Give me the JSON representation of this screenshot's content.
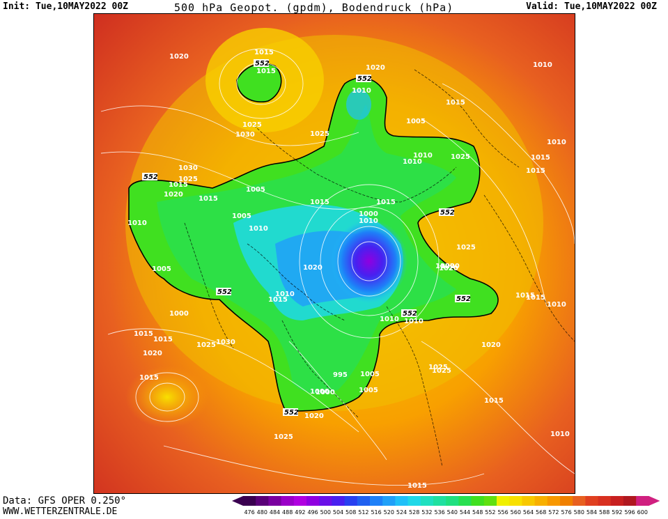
{
  "header": {
    "init": "Init: Tue,10MAY2022 00Z",
    "title": "500 hPa Geopot. (gpdm), Bodendruck (hPa)",
    "valid": "Valid: Tue,10MAY2022 00Z"
  },
  "footer": {
    "data_source": "Data: GFS OPER 0.250°",
    "website": "WWW.WETTERZENTRALE.DE"
  },
  "legend": {
    "values": [
      "476",
      "480",
      "484",
      "488",
      "492",
      "496",
      "500",
      "504",
      "508",
      "512",
      "516",
      "520",
      "524",
      "528",
      "532",
      "536",
      "540",
      "544",
      "548",
      "552",
      "556",
      "560",
      "564",
      "568",
      "572",
      "576",
      "580",
      "584",
      "588",
      "592",
      "596",
      "600"
    ],
    "colors": [
      "#3a0050",
      "#5a0078",
      "#7a00a0",
      "#9a00c8",
      "#b000e0",
      "#9000e0",
      "#6a10e8",
      "#4820f0",
      "#2840f0",
      "#2060f0",
      "#1e80f8",
      "#20a0f8",
      "#20c0f8",
      "#20d8e8",
      "#20e0c0",
      "#20e0a0",
      "#20e080",
      "#28e050",
      "#40e020",
      "#60e010",
      "#f0f000",
      "#f8e000",
      "#f8c800",
      "#f8b000",
      "#f89800",
      "#f08000",
      "#e86020",
      "#e04020",
      "#d83020",
      "#c82020",
      "#b01820",
      "#d02080"
    ]
  },
  "map": {
    "geopotential_label": "552",
    "pressure_labels": [
      {
        "text": "1020"
      },
      {
        "text": "1015"
      },
      {
        "text": "1015"
      },
      {
        "text": "1025"
      },
      {
        "text": "1030"
      },
      {
        "text": "1020"
      },
      {
        "text": "1010"
      },
      {
        "text": "1015"
      },
      {
        "text": "1005"
      },
      {
        "text": "1010"
      },
      {
        "text": "1015"
      },
      {
        "text": "1025"
      },
      {
        "text": "1010"
      },
      {
        "text": "1015"
      },
      {
        "text": "1015"
      },
      {
        "text": "1030"
      },
      {
        "text": "1025"
      },
      {
        "text": "1020"
      },
      {
        "text": "1010"
      },
      {
        "text": "1015"
      },
      {
        "text": "1005"
      },
      {
        "text": "1010"
      },
      {
        "text": "1015"
      },
      {
        "text": "1000"
      },
      {
        "text": "1005"
      },
      {
        "text": "1025"
      },
      {
        "text": "1020"
      },
      {
        "text": "1010"
      },
      {
        "text": "1005"
      },
      {
        "text": "1000"
      },
      {
        "text": "1010"
      },
      {
        "text": "1020"
      },
      {
        "text": "1015"
      },
      {
        "text": "1010"
      },
      {
        "text": "1015"
      },
      {
        "text": "1005"
      },
      {
        "text": "1010"
      },
      {
        "text": "1000"
      },
      {
        "text": "1015"
      },
      {
        "text": "1020"
      },
      {
        "text": "1015"
      },
      {
        "text": "1030"
      },
      {
        "text": "1025"
      },
      {
        "text": "1020"
      },
      {
        "text": "1015"
      },
      {
        "text": "1020"
      },
      {
        "text": "1025"
      },
      {
        "text": "1015"
      },
      {
        "text": "1010"
      },
      {
        "text": "995"
      },
      {
        "text": "1000"
      },
      {
        "text": "1005"
      },
      {
        "text": "1025"
      },
      {
        "text": "1020"
      },
      {
        "text": "1015"
      },
      {
        "text": "1015"
      },
      {
        "text": "1010"
      },
      {
        "text": "1010"
      },
      {
        "text": "1025"
      },
      {
        "text": "1025"
      },
      {
        "text": "1015"
      },
      {
        "text": "1010"
      },
      {
        "text": "1020"
      },
      {
        "text": "1025"
      }
    ]
  }
}
